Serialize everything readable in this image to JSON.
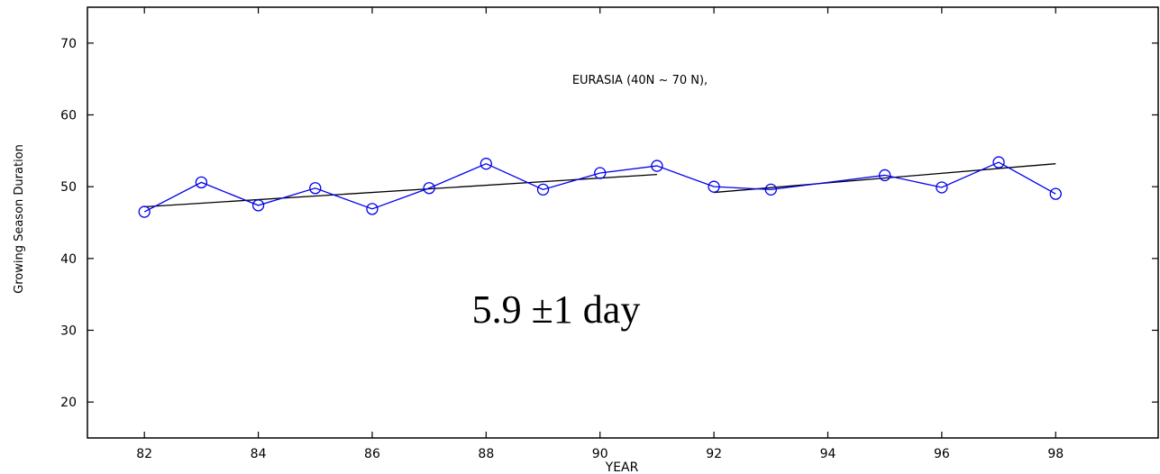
{
  "chart_data": {
    "type": "line",
    "title": "EURASIA (40N ~ 70 N),",
    "xlabel": "YEAR",
    "ylabel": "Growing Season Duration",
    "annotation": "5.9 ±1 day",
    "xlim": [
      81,
      99.8
    ],
    "ylim": [
      15,
      75
    ],
    "x_ticks": [
      82,
      84,
      86,
      88,
      90,
      92,
      94,
      96,
      98
    ],
    "x_tick_labels": [
      "82",
      "84",
      "86",
      "88",
      "90",
      "92",
      "94",
      "96",
      "98"
    ],
    "y_ticks": [
      20,
      30,
      40,
      50,
      60,
      70
    ],
    "y_tick_labels": [
      "20",
      "30",
      "40",
      "50",
      "60",
      "70"
    ],
    "grid": false,
    "series": [
      {
        "color": "#0000ee",
        "marker": "circle",
        "x": [
          82,
          83,
          84,
          85,
          86,
          87,
          88,
          89,
          90,
          91,
          92,
          93,
          94,
          95,
          96,
          97,
          98
        ],
        "y": [
          46.5,
          50.6,
          47.4,
          49.8,
          46.9,
          49.8,
          53.2,
          49.6,
          51.9,
          52.9,
          50.0,
          49.6,
          null,
          51.6,
          49.9,
          53.4,
          49.0
        ]
      }
    ],
    "trend_lines": [
      {
        "color": "#000000",
        "x": [
          82,
          91
        ],
        "y": [
          47.2,
          51.7
        ]
      },
      {
        "color": "#000000",
        "x": [
          92,
          98
        ],
        "y": [
          49.2,
          53.2
        ]
      }
    ]
  }
}
